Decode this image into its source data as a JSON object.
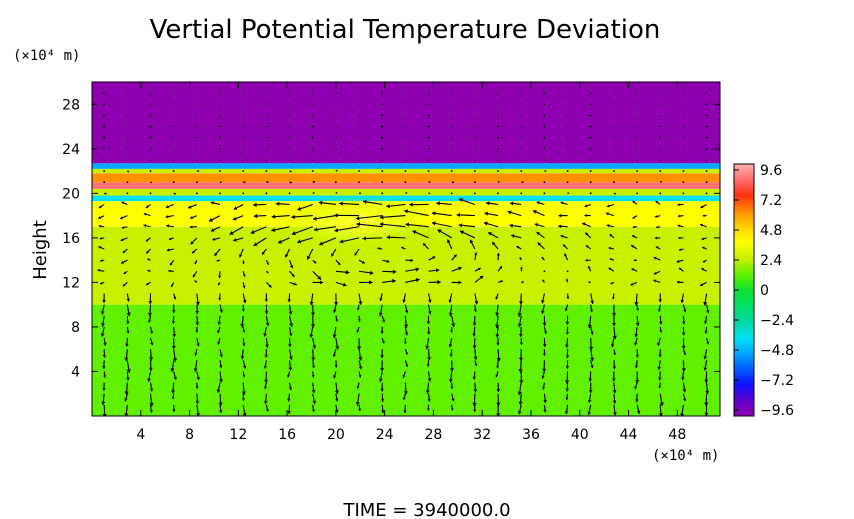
{
  "chart_data": {
    "type": "heatmap",
    "title": "Vertial Potential Temperature Deviation",
    "xlabel": "",
    "x_unit": "(×10⁴ m)",
    "ylabel": "Height",
    "y_unit": "(×10⁴ m)",
    "xlim": [
      0,
      51.5
    ],
    "ylim": [
      0,
      30
    ],
    "x_ticks": [
      4,
      8,
      12,
      16,
      20,
      24,
      28,
      32,
      36,
      40,
      44,
      48
    ],
    "y_ticks": [
      4,
      8,
      12,
      16,
      20,
      24,
      28
    ],
    "colorbar": {
      "ticks": [
        "9.6",
        "7.2",
        "4.8",
        "2.4",
        "0",
        "−2.4",
        "−4.8",
        "−7.2",
        "−9.6"
      ],
      "range": [
        -9.6,
        9.6
      ]
    },
    "field_layers": [
      {
        "from": 0,
        "to": 10,
        "value": 0.9
      },
      {
        "from": 10,
        "to": 17,
        "value": 2.0
      },
      {
        "from": 17,
        "to": 19.3,
        "value": 3.2
      },
      {
        "from": 19.3,
        "to": 19.8,
        "value": -4.5
      },
      {
        "from": 19.8,
        "to": 20.4,
        "value": 2.2
      },
      {
        "from": 20.4,
        "to": 21.0,
        "value": 8.0
      },
      {
        "from": 21.0,
        "to": 21.8,
        "value": 5.2
      },
      {
        "from": 21.8,
        "to": 22.2,
        "value": 2.0
      },
      {
        "from": 22.2,
        "to": 22.7,
        "value": -5.0
      },
      {
        "from": 22.7,
        "to": 30,
        "value": -9.8
      }
    ],
    "warm_anomaly": {
      "x": 22,
      "y": 18,
      "value": 4.6
    },
    "vector_field": "wind arrows over the domain below ~20 height; strong circulation near x 16–36, y 12–18"
  },
  "footer": {
    "time_label": "TIME  =  3940000.0"
  }
}
